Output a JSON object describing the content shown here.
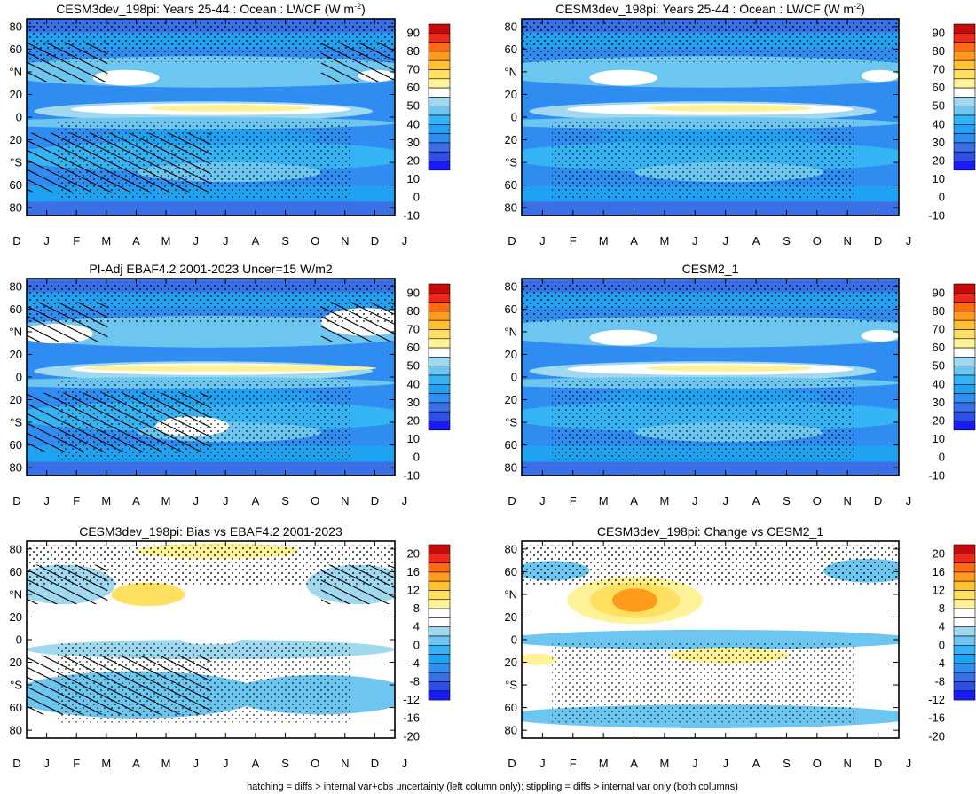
{
  "footer": "hatching = diffs > internal var+obs uncertainty (left column only); stippling = diffs > internal var only (both columns)",
  "colors": {
    "abs_scale": [
      "#1a1aff",
      "#2e4fe6",
      "#3a6fe6",
      "#2f8cf0",
      "#1fa2f2",
      "#35b4f5",
      "#6cc6f0",
      "#a0d8f0",
      "#ffffff",
      "#fff39a",
      "#ffe060",
      "#ffc22e",
      "#ff9a1a",
      "#ff6a14",
      "#f0281a",
      "#c80a0a"
    ],
    "diff_scale": [
      "#1a1aff",
      "#2e4fe6",
      "#3a6fe6",
      "#2f8cf0",
      "#1fa2f2",
      "#35b4f5",
      "#6cc6f0",
      "#a0d8f0",
      "#ffffff",
      "#ffffff",
      "#fff39a",
      "#ffe060",
      "#ffc22e",
      "#ff9a1a",
      "#ff6a14",
      "#f0281a",
      "#c80a0a"
    ]
  },
  "chart_data": [
    {
      "id": "p1",
      "type": "heatmap",
      "title": "CESM3dev_198pi: Years 25-44 : Ocean : LWCF (W m",
      "title_sup": "-2",
      "title_end": ")",
      "xlabels": [
        "D",
        "J",
        "F",
        "M",
        "A",
        "M",
        "J",
        "J",
        "A",
        "S",
        "O",
        "N",
        "D",
        "J"
      ],
      "ylabels": [
        "80",
        "60",
        "°N",
        "20",
        "0",
        "20",
        "°S",
        "60",
        "80"
      ],
      "ylim": [
        -90,
        90
      ],
      "colorbar_labels": [
        "90",
        "80",
        "70",
        "60",
        "50",
        "40",
        "30",
        "20",
        "10",
        "0",
        "-10"
      ],
      "scale": "abs",
      "hatching": true,
      "stippling": true
    },
    {
      "id": "p2",
      "type": "heatmap",
      "title": "CESM3dev_198pi: Years 25-44 : Ocean : LWCF (W m",
      "title_sup": "-2",
      "title_end": ")",
      "xlabels": [
        "D",
        "J",
        "F",
        "M",
        "A",
        "M",
        "J",
        "J",
        "A",
        "S",
        "O",
        "N",
        "D",
        "J"
      ],
      "ylabels": [
        "80",
        "60",
        "°N",
        "20",
        "0",
        "20",
        "°S",
        "60",
        "80"
      ],
      "ylim": [
        -90,
        90
      ],
      "colorbar_labels": [
        "90",
        "80",
        "70",
        "60",
        "50",
        "40",
        "30",
        "20",
        "10",
        "0",
        "-10"
      ],
      "scale": "abs",
      "hatching": false,
      "stippling": true
    },
    {
      "id": "p3",
      "type": "heatmap",
      "title": "PI-Adj EBAF4.2 2001-2023 Uncer=15 W/m2",
      "title_sup": "",
      "title_end": "",
      "xlabels": [
        "D",
        "J",
        "F",
        "M",
        "A",
        "M",
        "J",
        "J",
        "A",
        "S",
        "O",
        "N",
        "D",
        "J"
      ],
      "ylabels": [
        "80",
        "60",
        "°N",
        "20",
        "0",
        "20",
        "°S",
        "60",
        "80"
      ],
      "ylim": [
        -90,
        90
      ],
      "colorbar_labels": [
        "90",
        "80",
        "70",
        "60",
        "50",
        "40",
        "30",
        "20",
        "10",
        "0",
        "-10"
      ],
      "scale": "abs",
      "hatching": true,
      "stippling": true
    },
    {
      "id": "p4",
      "type": "heatmap",
      "title": "CESM2_1",
      "title_sup": "",
      "title_end": "",
      "xlabels": [
        "D",
        "J",
        "F",
        "M",
        "A",
        "M",
        "J",
        "J",
        "A",
        "S",
        "O",
        "N",
        "D",
        "J"
      ],
      "ylabels": [
        "80",
        "60",
        "°N",
        "20",
        "0",
        "20",
        "°S",
        "60",
        "80"
      ],
      "ylim": [
        -90,
        90
      ],
      "colorbar_labels": [
        "90",
        "80",
        "70",
        "60",
        "50",
        "40",
        "30",
        "20",
        "10",
        "0",
        "-10"
      ],
      "scale": "abs",
      "hatching": false,
      "stippling": true
    },
    {
      "id": "p5",
      "type": "heatmap",
      "title": "CESM3dev_198pi: Bias vs EBAF4.2 2001-2023",
      "title_sup": "",
      "title_end": "",
      "xlabels": [
        "D",
        "J",
        "F",
        "M",
        "A",
        "M",
        "J",
        "J",
        "A",
        "S",
        "O",
        "N",
        "D",
        "J"
      ],
      "ylabels": [
        "80",
        "60",
        "°N",
        "20",
        "0",
        "20",
        "°S",
        "60",
        "80"
      ],
      "ylim": [
        -90,
        90
      ],
      "colorbar_labels": [
        "20",
        "16",
        "12",
        "8",
        "4",
        "0",
        "-4",
        "-8",
        "-12",
        "-16",
        "-20"
      ],
      "scale": "diff",
      "hatching": true,
      "stippling": true
    },
    {
      "id": "p6",
      "type": "heatmap",
      "title": "CESM3dev_198pi: Change vs CESM2_1",
      "title_sup": "",
      "title_end": "",
      "xlabels": [
        "D",
        "J",
        "F",
        "M",
        "A",
        "M",
        "J",
        "J",
        "A",
        "S",
        "O",
        "N",
        "D",
        "J"
      ],
      "ylabels": [
        "80",
        "60",
        "°N",
        "20",
        "0",
        "20",
        "°S",
        "60",
        "80"
      ],
      "ylim": [
        -90,
        90
      ],
      "colorbar_labels": [
        "20",
        "16",
        "12",
        "8",
        "4",
        "0",
        "-4",
        "-8",
        "-12",
        "-16",
        "-20"
      ],
      "scale": "diff",
      "hatching": false,
      "stippling": true
    }
  ]
}
